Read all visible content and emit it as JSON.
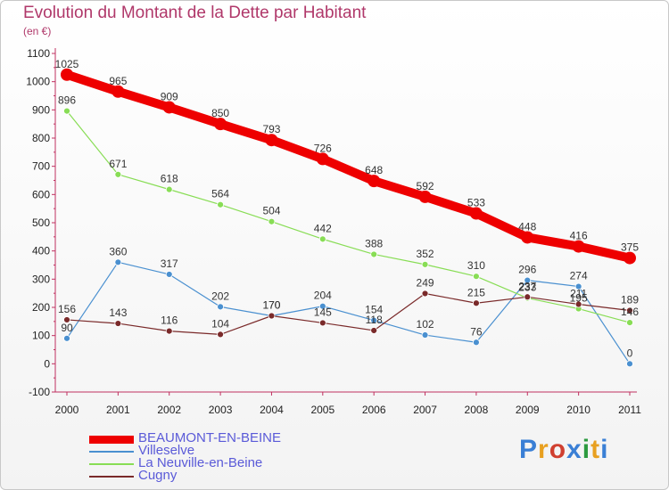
{
  "header": {
    "title": "Evolution du Montant de la Dette par Habitant",
    "subtitle": "(en €)"
  },
  "logo": {
    "text": "Proxiti",
    "letter_colors": [
      "#3a7fd5",
      "#e8a020",
      "#d04030",
      "#3a7fd5",
      "#2c9a40",
      "#e8a020",
      "#3a7fd5"
    ]
  },
  "chart_data": {
    "type": "line",
    "title": "Evolution du Montant de la Dette par Habitant",
    "subtitle": "(en €)",
    "x": [
      "2000",
      "2001",
      "2002",
      "2003",
      "2004",
      "2005",
      "2006",
      "2007",
      "2008",
      "2009",
      "2010",
      "2011"
    ],
    "y_ticks": [
      "1100",
      "1000",
      "900",
      "800",
      "700",
      "600",
      "500",
      "400",
      "300",
      "200",
      "100",
      "0",
      "-100"
    ],
    "ylim": [
      -100,
      1100
    ],
    "grid": false,
    "legend_position": "bottom-left",
    "series": [
      {
        "name": "BEAUMONT-EN-BEINE",
        "color": "#ee0000",
        "values": [
          1025,
          965,
          909,
          850,
          793,
          726,
          648,
          592,
          533,
          448,
          416,
          375
        ],
        "labels": [
          "1025",
          "965",
          "909",
          "850",
          "793",
          "726",
          "648",
          "592",
          "533",
          "448",
          "416",
          "375"
        ]
      },
      {
        "name": "Villeselve",
        "color": "#4a90d0",
        "values": [
          90,
          360,
          317,
          202,
          170,
          204,
          154,
          102,
          76,
          296,
          274,
          0
        ],
        "labels": [
          "90",
          "360",
          "317",
          "202",
          "170",
          "204",
          "154",
          "102",
          "76",
          "296",
          "274",
          "0"
        ]
      },
      {
        "name": "La Neuville-en-Beine",
        "color": "#88dd55",
        "values": [
          896,
          671,
          618,
          564,
          504,
          442,
          388,
          352,
          310,
          233,
          195,
          146
        ],
        "labels": [
          "896",
          "671",
          "618",
          "564",
          "504",
          "442",
          "388",
          "352",
          "310",
          "233",
          "195",
          "146"
        ]
      },
      {
        "name": "Cugny",
        "color": "#7a2a2a",
        "values": [
          156,
          143,
          116,
          104,
          170,
          145,
          118,
          249,
          215,
          237,
          211,
          189
        ],
        "labels": [
          "156",
          "143",
          "116",
          "104",
          "170",
          "145",
          "118",
          "249",
          "215",
          "237",
          "211",
          "189"
        ]
      }
    ]
  }
}
